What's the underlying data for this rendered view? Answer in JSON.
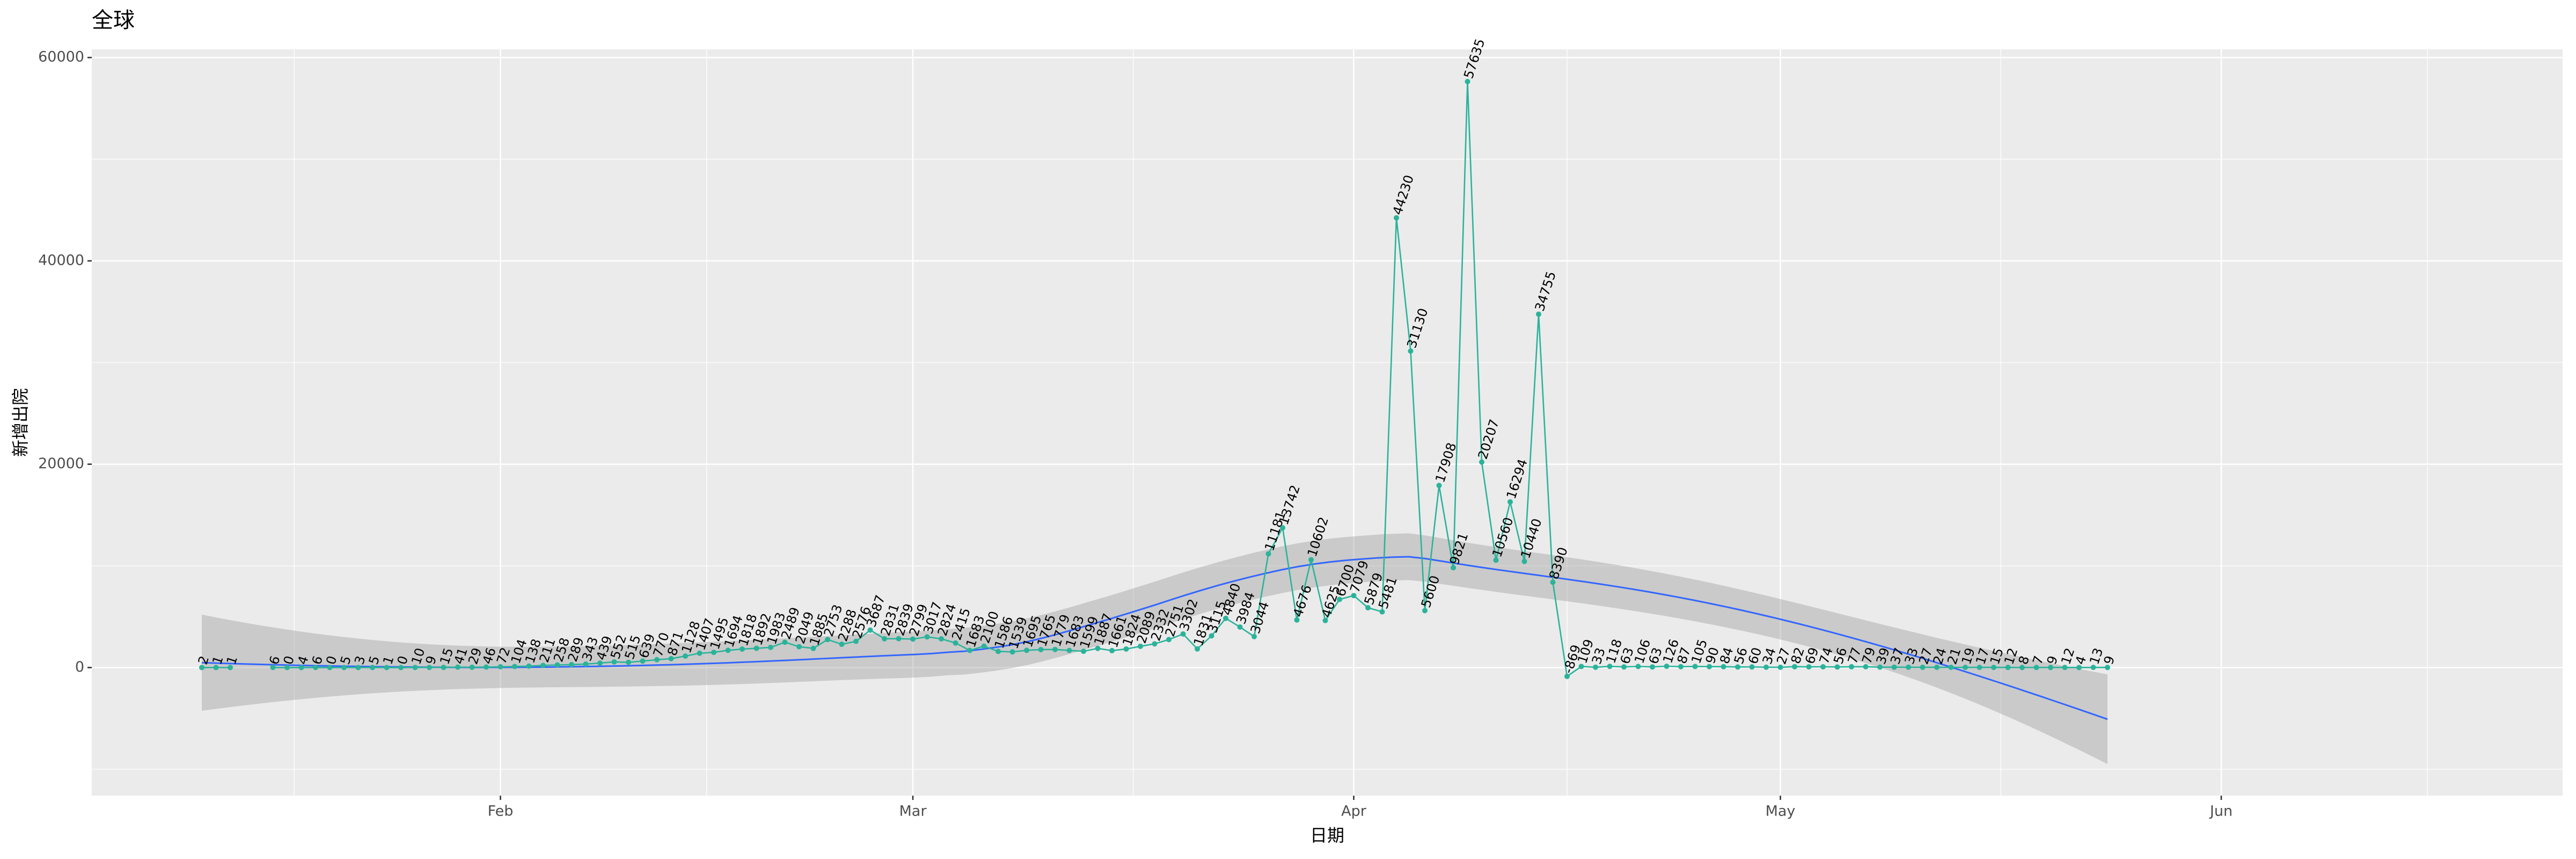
{
  "chart_data": {
    "type": "line",
    "title": "全球",
    "x_label": "日期",
    "y_label": "新增出院",
    "categories": [
      null,
      null,
      null,
      null,
      null,
      null,
      null,
      null,
      null,
      null,
      null,
      null,
      null,
      null,
      null,
      null,
      null,
      null,
      null,
      null,
      null,
      "Feb",
      null,
      null,
      null,
      null,
      null,
      null,
      null,
      null,
      null,
      null,
      null,
      null,
      null,
      null,
      null,
      null,
      null,
      null,
      null,
      null,
      null,
      null,
      null,
      null,
      null,
      null,
      null,
      null,
      "Mar",
      null,
      null,
      null,
      null,
      null,
      null,
      null,
      null,
      null,
      null,
      null,
      null,
      null,
      null,
      null,
      null,
      null,
      null,
      null,
      null,
      null,
      null,
      null,
      null,
      null,
      null,
      null,
      null,
      null,
      null,
      "Apr",
      null,
      null,
      null,
      null,
      null,
      null,
      null,
      null,
      null,
      null,
      null,
      null,
      null,
      null,
      null,
      null,
      null,
      null,
      null,
      null,
      null,
      null,
      null,
      null,
      null,
      null,
      null,
      null,
      null,
      "May",
      null,
      null,
      null,
      null,
      null,
      null,
      null,
      null,
      null,
      null,
      null,
      null,
      null,
      null,
      null,
      null,
      null,
      null,
      null,
      null,
      null,
      null,
      null,
      null,
      null,
      null,
      null,
      null,
      null,
      null,
      "Jun"
    ],
    "values": [
      2,
      1,
      1,
      null,
      null,
      6,
      0,
      4,
      6,
      0,
      5,
      3,
      5,
      1,
      0,
      10,
      9,
      15,
      41,
      29,
      46,
      72,
      104,
      138,
      211,
      258,
      289,
      343,
      439,
      552,
      515,
      639,
      770,
      871,
      1128,
      1407,
      1495,
      1694,
      1818,
      1892,
      1983,
      2489,
      2049,
      1885,
      2753,
      2288,
      2576,
      3687,
      2831,
      2839,
      2799,
      3017,
      2824,
      2415,
      1683,
      2100,
      1586,
      1539,
      1695,
      1765,
      1779,
      1683,
      1599,
      1887,
      1661,
      1824,
      2089,
      2332,
      2751,
      3302,
      1831,
      3115,
      4840,
      3984,
      3044,
      11181,
      13742,
      4676,
      10602,
      4625,
      6700,
      7079,
      5879,
      5481,
      44230,
      31130,
      5600,
      17908,
      9821,
      57635,
      20207,
      10560,
      16294,
      10440,
      34755,
      8390,
      -869,
      109,
      33,
      118,
      63,
      106,
      63,
      126,
      87,
      105,
      90,
      84,
      56,
      60,
      34,
      27,
      82,
      69,
      74,
      56,
      77,
      79,
      39,
      37,
      33,
      27,
      24,
      21,
      19,
      17,
      15,
      12,
      8,
      7,
      9,
      12,
      4,
      13,
      9,
      null,
      null,
      null,
      null,
      null,
      null,
      null,
      null
    ],
    "color": "#2bb39a",
    "ylim": [
      -12600,
      60800
    ],
    "yticks": [
      0,
      20000,
      40000,
      60000
    ],
    "grid": true,
    "data_labels": true,
    "smooth": {
      "method": "loess",
      "span": 0.75,
      "color": "#3366ff",
      "band": true
    }
  }
}
